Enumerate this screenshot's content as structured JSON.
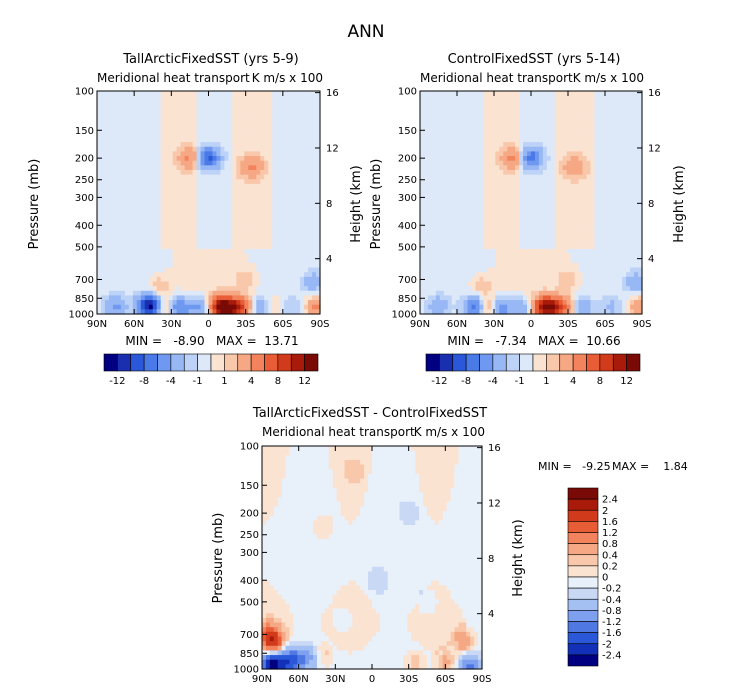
{
  "figure_title": "ANN",
  "chart_data": [
    {
      "type": "heatmap",
      "title": "TallArcticFixedSST (yrs 5-9)",
      "subtitle_left": "Meridional heat transport",
      "subtitle_right": "K m/s x 100",
      "ylabel": "Pressure (mb)",
      "ylabel_right": "Height (km)",
      "xticks": [
        "90N",
        "60N",
        "30N",
        "0",
        "30S",
        "60S",
        "90S"
      ],
      "xtick_lat": [
        90,
        60,
        30,
        0,
        -30,
        -60,
        -90
      ],
      "yticks": [
        "100",
        "150",
        "200",
        "250",
        "300",
        "400",
        "500",
        "700",
        "850",
        "1000"
      ],
      "ytick_p": [
        100,
        150,
        200,
        250,
        300,
        400,
        500,
        700,
        850,
        1000
      ],
      "yticks_right": [
        "16",
        "12",
        "8",
        "4"
      ],
      "ytick_right_km": [
        16,
        12,
        8,
        4
      ],
      "ylim_p": [
        100,
        1000
      ],
      "xlim_lat": [
        90,
        -90
      ],
      "stats": "MIN =   -8.90   MAX =  13.71",
      "colorbar_labels": [
        "-12",
        "-8",
        "-4",
        "-1",
        "1",
        "4",
        "8",
        "12"
      ],
      "features": [
        {
          "lat": 45,
          "p": 930,
          "v": -8
        },
        {
          "lat": 25,
          "p": 935,
          "v": -7
        },
        {
          "lat": 8,
          "p": 935,
          "v": -5
        },
        {
          "lat": 50,
          "p": 910,
          "v": -6
        },
        {
          "lat": -40,
          "p": 935,
          "v": -4
        },
        {
          "lat": -65,
          "p": 930,
          "v": -2
        },
        {
          "lat": 75,
          "p": 920,
          "v": -4
        },
        {
          "lat": -85,
          "p": 720,
          "v": -3
        },
        {
          "lat": 35,
          "p": 930,
          "v": 5
        },
        {
          "lat": -10,
          "p": 930,
          "v": 12
        },
        {
          "lat": -20,
          "p": 935,
          "v": 8
        },
        {
          "lat": -30,
          "p": 930,
          "v": 5
        },
        {
          "lat": -88,
          "p": 930,
          "v": 5
        },
        {
          "lat": -55,
          "p": 920,
          "v": 2
        },
        {
          "lat": 15,
          "p": 200,
          "v": 4
        },
        {
          "lat": -35,
          "p": 220,
          "v": 4
        },
        {
          "lat": 0,
          "p": 200,
          "v": -8
        },
        {
          "lat": 40,
          "p": 750,
          "v": 2
        },
        {
          "lat": -30,
          "p": 700,
          "v": 2
        }
      ]
    },
    {
      "type": "heatmap",
      "title": "ControlFixedSST (yrs 5-14)",
      "subtitle_left": "Meridional heat transport",
      "subtitle_right": "K m/s x 100",
      "ylabel": "Pressure (mb)",
      "ylabel_right": "Height (km)",
      "xticks": [
        "90N",
        "60N",
        "30N",
        "0",
        "30S",
        "60S",
        "90S"
      ],
      "xtick_lat": [
        90,
        60,
        30,
        0,
        -30,
        -60,
        -90
      ],
      "yticks": [
        "100",
        "150",
        "200",
        "250",
        "300",
        "400",
        "500",
        "700",
        "850",
        "1000"
      ],
      "ytick_p": [
        100,
        150,
        200,
        250,
        300,
        400,
        500,
        700,
        850,
        1000
      ],
      "yticks_right": [
        "16",
        "12",
        "8",
        "4"
      ],
      "ytick_right_km": [
        16,
        12,
        8,
        4
      ],
      "ylim_p": [
        100,
        1000
      ],
      "xlim_lat": [
        90,
        -90
      ],
      "stats": "MIN =   -7.34   MAX =  10.66",
      "colorbar_labels": [
        "-12",
        "-8",
        "-4",
        "-1",
        "1",
        "4",
        "8",
        "12"
      ],
      "features": [
        {
          "lat": 45,
          "p": 930,
          "v": -7
        },
        {
          "lat": 25,
          "p": 935,
          "v": -6
        },
        {
          "lat": 8,
          "p": 935,
          "v": -4
        },
        {
          "lat": -40,
          "p": 935,
          "v": -4
        },
        {
          "lat": -65,
          "p": 930,
          "v": -2
        },
        {
          "lat": 75,
          "p": 920,
          "v": -3
        },
        {
          "lat": -85,
          "p": 720,
          "v": -3
        },
        {
          "lat": 35,
          "p": 930,
          "v": 5
        },
        {
          "lat": -10,
          "p": 930,
          "v": 10
        },
        {
          "lat": -20,
          "p": 935,
          "v": 7
        },
        {
          "lat": -30,
          "p": 930,
          "v": 4
        },
        {
          "lat": -88,
          "p": 930,
          "v": 4
        },
        {
          "lat": 15,
          "p": 200,
          "v": 4
        },
        {
          "lat": -35,
          "p": 220,
          "v": 3
        },
        {
          "lat": 0,
          "p": 200,
          "v": -7
        },
        {
          "lat": 40,
          "p": 750,
          "v": 2
        },
        {
          "lat": -30,
          "p": 700,
          "v": 2
        }
      ]
    },
    {
      "type": "heatmap",
      "title": "TallArcticFixedSST - ControlFixedSST",
      "subtitle_left": "Meridional heat transport",
      "subtitle_right": "K m/s x 100",
      "ylabel": "Pressure (mb)",
      "ylabel_right": "Height (km)",
      "xticks": [
        "90N",
        "60N",
        "30N",
        "0",
        "30S",
        "60S",
        "90S"
      ],
      "xtick_lat": [
        90,
        60,
        30,
        0,
        -30,
        -60,
        -90
      ],
      "yticks": [
        "100",
        "150",
        "200",
        "250",
        "300",
        "400",
        "500",
        "700",
        "850",
        "1000"
      ],
      "ytick_p": [
        100,
        150,
        200,
        250,
        300,
        400,
        500,
        700,
        850,
        1000
      ],
      "yticks_right": [
        "16",
        "12",
        "8",
        "4"
      ],
      "ytick_right_km": [
        16,
        12,
        8,
        4
      ],
      "ylim_p": [
        100,
        1000
      ],
      "xlim_lat": [
        90,
        -90
      ],
      "stats_min": "MIN =   -9.25",
      "stats_max": "MAX =    1.84",
      "colorbar_labels": [
        "2.4",
        "2",
        "1.6",
        "1.2",
        "0.8",
        "0.4",
        "0.2",
        "0",
        "-0.2",
        "-0.4",
        "-0.8",
        "-1.2",
        "-1.6",
        "-2",
        "-2.4"
      ],
      "features": [
        {
          "lat": 82,
          "p": 960,
          "v": -2.6
        },
        {
          "lat": 70,
          "p": 930,
          "v": -1.6
        },
        {
          "lat": 60,
          "p": 900,
          "v": -1.0
        },
        {
          "lat": 50,
          "p": 900,
          "v": -0.6
        },
        {
          "lat": 80,
          "p": 760,
          "v": 1.6
        },
        {
          "lat": 85,
          "p": 700,
          "v": 1.0
        },
        {
          "lat": -75,
          "p": 760,
          "v": 0.8
        },
        {
          "lat": -80,
          "p": 960,
          "v": -1.2
        },
        {
          "lat": -60,
          "p": 930,
          "v": 0.6
        },
        {
          "lat": -35,
          "p": 940,
          "v": 0.4
        },
        {
          "lat": 40,
          "p": 860,
          "v": 0.4
        },
        {
          "lat": 40,
          "p": 230,
          "v": 0.3
        },
        {
          "lat": 15,
          "p": 130,
          "v": 0.3
        },
        {
          "lat": -30,
          "p": 200,
          "v": -0.3
        },
        {
          "lat": -5,
          "p": 400,
          "v": -0.3
        },
        {
          "lat": -45,
          "p": 500,
          "v": -0.3
        },
        {
          "lat": 25,
          "p": 600,
          "v": -0.3
        }
      ]
    }
  ],
  "colors": {
    "neg": [
      "#000080",
      "#1a2fb0",
      "#2a58d8",
      "#4a7ae8",
      "#6f99f0",
      "#98b8f5",
      "#bcd2f7",
      "#dde9f8"
    ],
    "pos": [
      "#fbe3d2",
      "#f9c8ab",
      "#f6a884",
      "#f2835c",
      "#e85c36",
      "#d13a1a",
      "#a81a0a",
      "#7a0a05"
    ],
    "diff_scale": [
      "#7a0a05",
      "#a81a0a",
      "#d13a1a",
      "#e85c36",
      "#f2835c",
      "#f6a884",
      "#f9c8ab",
      "#fbe3d2",
      "#e8f0fa",
      "#c8d8f5",
      "#a4bff2",
      "#7ea0ee",
      "#5078e2",
      "#2a58d8",
      "#1230b8",
      "#000080"
    ]
  }
}
